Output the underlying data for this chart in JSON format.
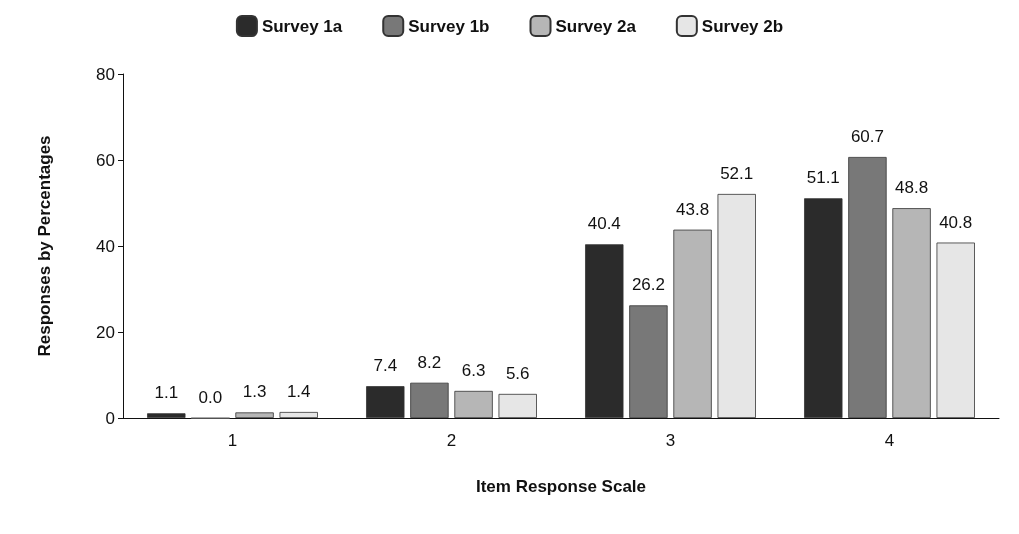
{
  "chart_data": {
    "type": "bar",
    "xlabel": "Item Response Scale",
    "ylabel": "Responses by Percentages",
    "categories": [
      "1",
      "2",
      "3",
      "4"
    ],
    "series": [
      {
        "name": "Survey 1a",
        "color": "#2b2b2b",
        "values": [
          1.1,
          7.4,
          40.4,
          51.1
        ],
        "value_labels": [
          "1.1",
          "7.4",
          "40.4",
          "51.1"
        ]
      },
      {
        "name": "Survey 1b",
        "color": "#787878",
        "values": [
          0,
          8.2,
          26.2,
          60.7
        ],
        "value_labels": [
          "0.0",
          "8.2",
          "26.2",
          "60.7"
        ]
      },
      {
        "name": "Survey 2a",
        "color": "#b6b6b6",
        "values": [
          1.3,
          6.3,
          43.8,
          48.8
        ],
        "value_labels": [
          "1.3",
          "6.3",
          "43.8",
          "48.8"
        ]
      },
      {
        "name": "Survey 2b",
        "color": "#e6e6e6",
        "values": [
          1.4,
          5.6,
          52.1,
          40.8
        ],
        "value_labels": [
          "1.4",
          "5.6",
          "52.1",
          "40.8"
        ]
      }
    ],
    "ylim": [
      0,
      80
    ],
    "yticks": [
      0,
      20,
      40,
      60,
      80
    ],
    "grid": false,
    "legend": "top"
  }
}
